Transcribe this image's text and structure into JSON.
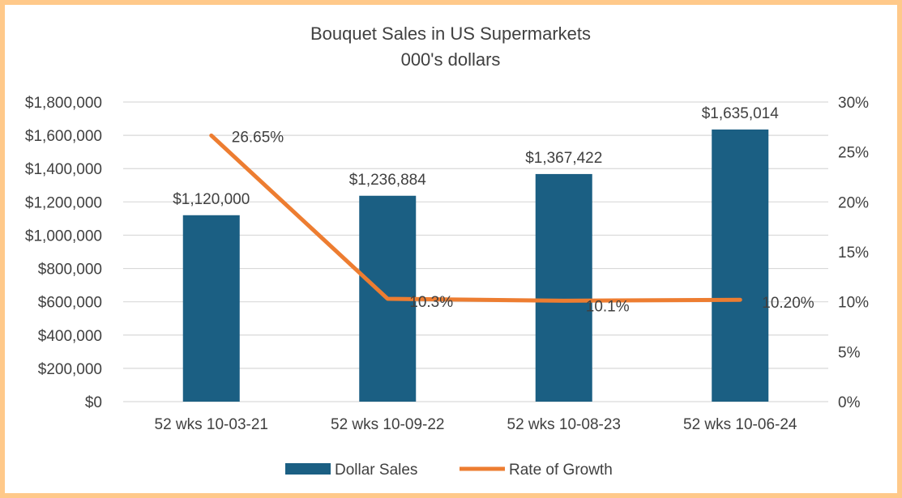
{
  "chart_data": {
    "type": "bar+line",
    "title": "Bouquet Sales in US Supermarkets",
    "subtitle": "000's dollars",
    "categories": [
      "52 wks 10-03-21",
      "52 wks 10-09-22",
      "52 wks 10-08-23",
      "52 wks 10-06-24"
    ],
    "series": [
      {
        "name": "Dollar Sales",
        "type": "bar",
        "axis": "left",
        "color": "#1B5F83",
        "values": [
          1120000,
          1236884,
          1367422,
          1635014
        ],
        "labels": [
          "$1,120,000",
          "$1,236,884",
          "$1,367,422",
          "$1,635,014"
        ]
      },
      {
        "name": "Rate of Growth",
        "type": "line",
        "axis": "right",
        "color": "#ED7D31",
        "values": [
          26.65,
          10.3,
          10.1,
          10.2
        ],
        "labels": [
          "26.65%",
          "10.3%",
          "10.1%",
          "10.20%"
        ]
      }
    ],
    "y_left": {
      "range": [
        0,
        1800000
      ],
      "ticks": [
        "$0",
        "$200,000",
        "$400,000",
        "$600,000",
        "$800,000",
        "$1,000,000",
        "$1,200,000",
        "$1,400,000",
        "$1,600,000",
        "$1,800,000"
      ]
    },
    "y_right": {
      "range": [
        0,
        30
      ],
      "ticks": [
        "0%",
        "5%",
        "10%",
        "15%",
        "20%",
        "25%",
        "30%"
      ]
    },
    "grid": true,
    "legend_position": "bottom",
    "border_color": "#FFC98A"
  }
}
